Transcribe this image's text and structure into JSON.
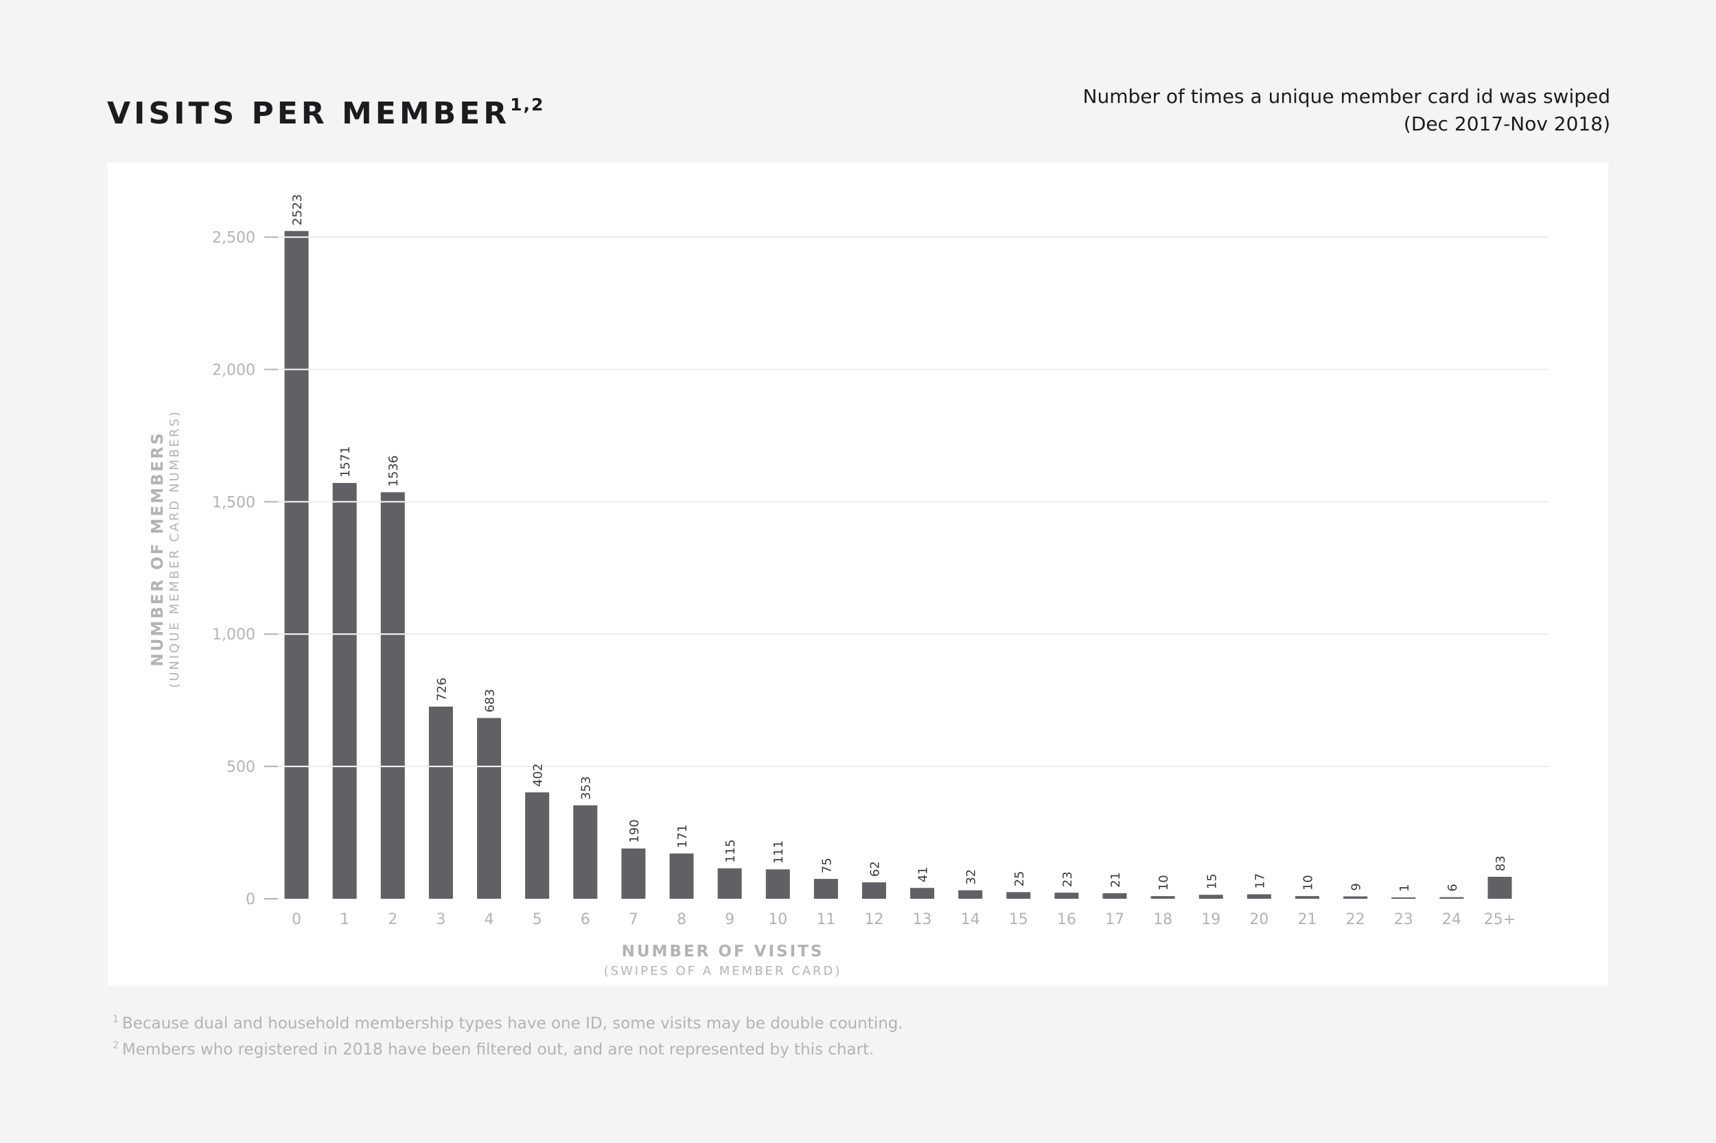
{
  "header": {
    "title": "VISITS PER MEMBER",
    "title_sup": "1,2",
    "subtitle_line1": "Number of times a unique member card id was swiped",
    "subtitle_line2": "(Dec 2017-Nov 2018)"
  },
  "footnotes": [
    {
      "mark": "1",
      "text": "Because dual and household membership types have one ID, some visits may be double counting."
    },
    {
      "mark": "2",
      "text": "Members who registered in 2018 have been filtered out, and are not represented by this chart."
    }
  ],
  "chart_data": {
    "type": "bar",
    "title": "VISITS PER MEMBER",
    "xlabel": "NUMBER OF VISITS",
    "xlabel_sub": "(SWIPES OF A MEMBER CARD)",
    "ylabel": "NUMBER OF MEMBERS",
    "ylabel_sub": "(UNIQUE MEMBER CARD NUMBERS)",
    "categories": [
      "0",
      "1",
      "2",
      "3",
      "4",
      "5",
      "6",
      "7",
      "8",
      "9",
      "10",
      "11",
      "12",
      "13",
      "14",
      "15",
      "16",
      "17",
      "18",
      "19",
      "20",
      "21",
      "22",
      "23",
      "24",
      "25+"
    ],
    "values": [
      2523,
      1571,
      1536,
      726,
      683,
      402,
      353,
      190,
      171,
      115,
      111,
      75,
      62,
      41,
      32,
      25,
      23,
      21,
      10,
      15,
      17,
      10,
      9,
      1,
      6,
      83
    ],
    "data_labels": [
      "2523",
      "1571",
      "1536",
      "726",
      "683",
      "402",
      "353",
      "190",
      "171",
      "115",
      "111",
      "75",
      "62",
      "41",
      "32",
      "25",
      "23",
      "21",
      "10",
      "15",
      "17",
      "10",
      "9",
      "1",
      "6",
      "83"
    ],
    "ylim": [
      0,
      2600
    ],
    "yticks": [
      0,
      500,
      1000,
      1500,
      2000,
      2500
    ],
    "ytick_labels": [
      "0",
      "500",
      "1,000",
      "1,500",
      "2,000",
      "2,500"
    ],
    "grid": true,
    "bar_color": "#616165",
    "grid_color": "#ececec",
    "axis_text_color": "#b3b3b3"
  }
}
